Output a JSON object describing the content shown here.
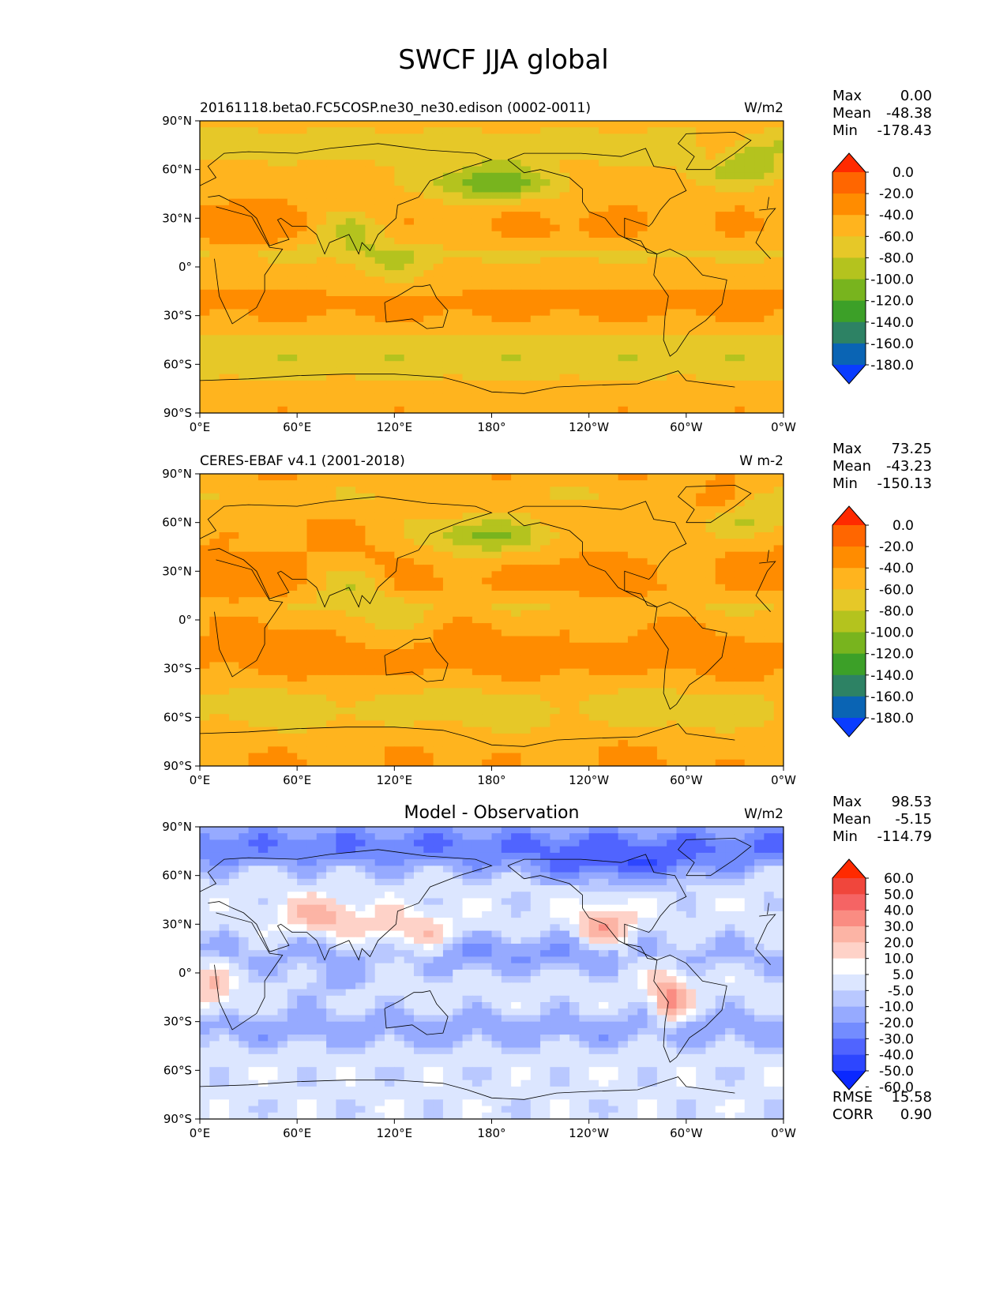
{
  "figure": {
    "title": "SWCF JJA global"
  },
  "chart_data": [
    {
      "type": "heatmap",
      "map": "global-lat-lon",
      "title_left": "20161118.beta0.FC5COSP.ne30_ne30.edison (0002-0011)",
      "title_center": "",
      "units": "W/m2",
      "stats": [
        {
          "label": "Max",
          "value": "0.00"
        },
        {
          "label": "Mean",
          "value": "-48.38"
        },
        {
          "label": "Min",
          "value": "-178.43"
        }
      ],
      "extra_stats": [],
      "x_ticks": [
        "0°E",
        "60°E",
        "120°E",
        "180°",
        "120°W",
        "60°W",
        "0°W"
      ],
      "y_ticks": [
        "90°N",
        "60°N",
        "30°N",
        "0°",
        "30°S",
        "60°S",
        "90°S"
      ],
      "xlim": [
        0,
        360
      ],
      "ylim": [
        -90,
        90
      ],
      "colorbar": {
        "colors": [
          "#ff2a00",
          "#ff6600",
          "#ff8c00",
          "#ffb41e",
          "#e6c828",
          "#b4c31e",
          "#78b41e",
          "#3ca028",
          "#2d8264",
          "#0a64b4",
          "#0a3cff"
        ],
        "labels": [
          "0.0",
          "-20.0",
          "-40.0",
          "-60.0",
          "-80.0",
          "-100.0",
          "-120.0",
          "-140.0",
          "-160.0",
          "-180.0"
        ],
        "extend": "both"
      },
      "field_palette": "swcf"
    },
    {
      "type": "heatmap",
      "map": "global-lat-lon",
      "title_left": "CERES-EBAF v4.1 (2001-2018)",
      "title_center": "",
      "units": "W m-2",
      "stats": [
        {
          "label": "Max",
          "value": "73.25"
        },
        {
          "label": "Mean",
          "value": "-43.23"
        },
        {
          "label": "Min",
          "value": "-150.13"
        }
      ],
      "extra_stats": [],
      "x_ticks": [
        "0°E",
        "60°E",
        "120°E",
        "180°",
        "120°W",
        "60°W",
        "0°W"
      ],
      "y_ticks": [
        "90°N",
        "60°N",
        "30°N",
        "0°",
        "30°S",
        "60°S",
        "90°S"
      ],
      "xlim": [
        0,
        360
      ],
      "ylim": [
        -90,
        90
      ],
      "colorbar": {
        "colors": [
          "#ff2a00",
          "#ff6600",
          "#ff8c00",
          "#ffb41e",
          "#e6c828",
          "#b4c31e",
          "#78b41e",
          "#3ca028",
          "#2d8264",
          "#0a64b4",
          "#0a3cff"
        ],
        "labels": [
          "0.0",
          "-20.0",
          "-40.0",
          "-60.0",
          "-80.0",
          "-100.0",
          "-120.0",
          "-140.0",
          "-160.0",
          "-180.0"
        ],
        "extend": "both"
      },
      "field_palette": "swcf"
    },
    {
      "type": "heatmap",
      "map": "global-lat-lon",
      "title_left": "",
      "title_center": "Model - Observation",
      "units": "W/m2",
      "stats": [
        {
          "label": "Max",
          "value": "98.53"
        },
        {
          "label": "Mean",
          "value": "-5.15"
        },
        {
          "label": "Min",
          "value": "-114.79"
        }
      ],
      "extra_stats": [
        {
          "label": "RMSE",
          "value": "15.58"
        },
        {
          "label": "CORR",
          "value": "0.90"
        }
      ],
      "x_ticks": [
        "0°E",
        "60°E",
        "120°E",
        "180°",
        "120°W",
        "60°W",
        "0°W"
      ],
      "y_ticks": [
        "90°N",
        "60°N",
        "30°N",
        "0°",
        "30°S",
        "60°S",
        "90°S"
      ],
      "xlim": [
        0,
        360
      ],
      "ylim": [
        -90,
        90
      ],
      "colorbar": {
        "colors": [
          "#ff2a00",
          "#f0463c",
          "#f56464",
          "#fa8c82",
          "#fcb4a5",
          "#fed2c8",
          "#ffffff",
          "#dce6ff",
          "#b9c8ff",
          "#96aaff",
          "#738cff",
          "#5064ff",
          "#2d46ff",
          "#0a28ff"
        ],
        "labels": [
          "60.0",
          "50.0",
          "40.0",
          "30.0",
          "20.0",
          "10.0",
          "5.0",
          "-5.0",
          "-10.0",
          "-20.0",
          "-30.0",
          "-40.0",
          "-50.0",
          "-60.0"
        ],
        "extend": "both"
      },
      "field_palette": "diff"
    }
  ]
}
